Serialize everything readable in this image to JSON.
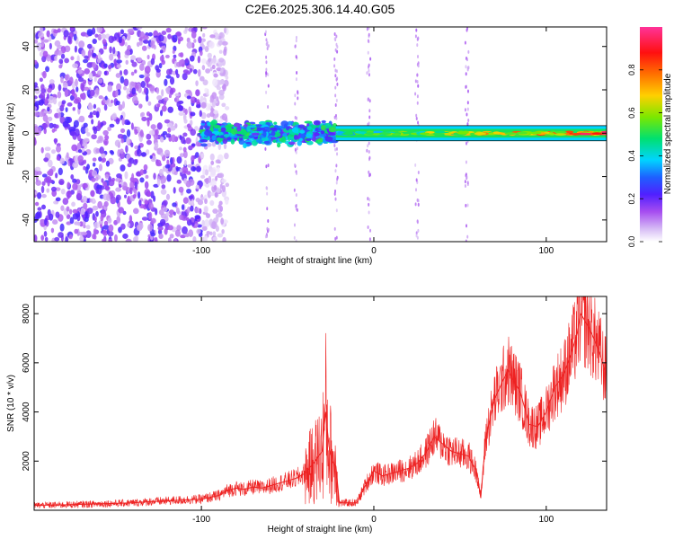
{
  "figure": {
    "title": "C2E6.2025.306.14.40.G05"
  },
  "chart_data": [
    {
      "type": "heatmap",
      "title": "",
      "xlabel": "Height of straight line (km)",
      "ylabel": "Frequency (Hz)",
      "xlim": [
        -197,
        135
      ],
      "ylim": [
        -50,
        49
      ],
      "xticks": [
        -100,
        0,
        100
      ],
      "xtick_labels": [
        "-100",
        "0",
        "100"
      ],
      "yticks": [
        -40,
        -20,
        0,
        20,
        40
      ],
      "ytick_labels": [
        "-40",
        "-20",
        "0",
        "20",
        "40"
      ],
      "colorbar": {
        "label": "Normalized spectral amplitude",
        "range": [
          0,
          1
        ],
        "ticks": [
          0.0,
          0.2,
          0.4,
          0.6,
          0.8
        ],
        "tick_labels": [
          "0.0",
          "0.2",
          "0.4",
          "0.6",
          "0.8"
        ],
        "colors": [
          "#ffffff",
          "#d6bbf5",
          "#8a2be2",
          "#1e1eff",
          "#00d4ff",
          "#00e060",
          "#9bea00",
          "#ffd000",
          "#ff7000",
          "#ff1010",
          "#ff3399"
        ]
      },
      "regions": [
        {
          "x_range": [
            -197,
            -100
          ],
          "freq_band": [
            -50,
            49
          ],
          "amplitude": 0.15
        },
        {
          "x_range": [
            -100,
            -22
          ],
          "freq_band": [
            -6,
            6
          ],
          "amplitude": 0.35
        },
        {
          "x_range": [
            -22,
            135
          ],
          "freq_band": [
            -2,
            2
          ],
          "amplitude": 0.75
        }
      ],
      "grid": false
    },
    {
      "type": "line",
      "title": "",
      "xlabel": "Height of straight line (km)",
      "ylabel": "SNR (10 * v/v)",
      "xlim": [
        -197,
        135
      ],
      "ylim": [
        0,
        8700
      ],
      "xticks": [
        -100,
        0,
        100
      ],
      "xtick_labels": [
        "-100",
        "0",
        "100"
      ],
      "yticks": [
        2000,
        4000,
        6000,
        8000
      ],
      "ytick_labels": [
        "2000",
        "4000",
        "6000",
        "8000"
      ],
      "series_color": "#ee2222",
      "x": [
        -197,
        -180,
        -160,
        -140,
        -130,
        -120,
        -110,
        -100,
        -90,
        -85,
        -80,
        -75,
        -70,
        -65,
        -60,
        -55,
        -50,
        -45,
        -40,
        -35,
        -30,
        -28,
        -26,
        -24,
        -22,
        -20,
        -15,
        -10,
        -5,
        0,
        5,
        10,
        15,
        20,
        25,
        30,
        35,
        40,
        45,
        50,
        55,
        60,
        62,
        65,
        70,
        75,
        78,
        80,
        85,
        90,
        95,
        100,
        105,
        110,
        115,
        118,
        120,
        125,
        130,
        135
      ],
      "y": [
        200,
        220,
        260,
        300,
        350,
        380,
        420,
        450,
        600,
        800,
        900,
        850,
        950,
        900,
        1000,
        1100,
        1200,
        1300,
        1500,
        1900,
        2400,
        4000,
        2600,
        2000,
        1800,
        300,
        300,
        300,
        1000,
        1600,
        1400,
        1500,
        1600,
        1700,
        1900,
        2300,
        3000,
        2700,
        2400,
        2300,
        2200,
        1500,
        500,
        3000,
        4500,
        5300,
        5700,
        5400,
        4800,
        3500,
        3400,
        4000,
        5000,
        5500,
        6500,
        7200,
        8000,
        7400,
        6600,
        5500
      ],
      "grid": false
    }
  ]
}
